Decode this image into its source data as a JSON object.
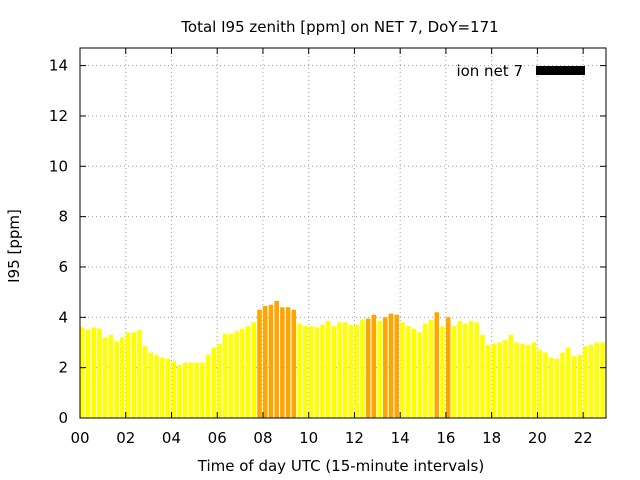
{
  "chart_data": {
    "type": "bar",
    "title": "Total I95 zenith [ppm] on NET 7, DoY=171",
    "xlabel": "Time of day UTC (15-minute intervals)",
    "ylabel": "I95 [ppm]",
    "xlim": [
      0,
      23
    ],
    "ylim": [
      0,
      14.7
    ],
    "x_ticks": [
      0,
      2,
      4,
      6,
      8,
      10,
      12,
      14,
      16,
      18,
      20,
      22
    ],
    "x_tick_labels": [
      "00",
      "02",
      "04",
      "06",
      "08",
      "10",
      "12",
      "14",
      "16",
      "18",
      "20",
      "22"
    ],
    "y_ticks": [
      0,
      2,
      4,
      6,
      8,
      10,
      12,
      14
    ],
    "y_tick_labels": [
      "0",
      "2",
      "4",
      "6",
      "8",
      "10",
      "12",
      "14"
    ],
    "grid": true,
    "legend_position": "top-right",
    "bar_width_hours": 0.2,
    "colors": {
      "normal": "#ffff00",
      "elevated": "#ffa500",
      "legend": "#000000",
      "grid": "#a0a0a0"
    },
    "series": [
      {
        "name": "ion net 7",
        "values": [
          {
            "x": 0.0,
            "y": 3.6,
            "level": "normal"
          },
          {
            "x": 0.25,
            "y": 3.5,
            "level": "normal"
          },
          {
            "x": 0.5,
            "y": 3.6,
            "level": "normal"
          },
          {
            "x": 0.75,
            "y": 3.55,
            "level": "normal"
          },
          {
            "x": 1.0,
            "y": 3.2,
            "level": "normal"
          },
          {
            "x": 1.25,
            "y": 3.3,
            "level": "normal"
          },
          {
            "x": 1.5,
            "y": 3.05,
            "level": "normal"
          },
          {
            "x": 1.75,
            "y": 3.2,
            "level": "normal"
          },
          {
            "x": 2.0,
            "y": 3.4,
            "level": "normal"
          },
          {
            "x": 2.25,
            "y": 3.4,
            "level": "normal"
          },
          {
            "x": 2.5,
            "y": 3.5,
            "level": "normal"
          },
          {
            "x": 2.75,
            "y": 2.85,
            "level": "normal"
          },
          {
            "x": 3.0,
            "y": 2.6,
            "level": "normal"
          },
          {
            "x": 3.25,
            "y": 2.5,
            "level": "normal"
          },
          {
            "x": 3.5,
            "y": 2.4,
            "level": "normal"
          },
          {
            "x": 3.75,
            "y": 2.35,
            "level": "normal"
          },
          {
            "x": 4.0,
            "y": 2.25,
            "level": "normal"
          },
          {
            "x": 4.25,
            "y": 2.1,
            "level": "normal"
          },
          {
            "x": 4.5,
            "y": 2.2,
            "level": "normal"
          },
          {
            "x": 4.75,
            "y": 2.2,
            "level": "normal"
          },
          {
            "x": 5.0,
            "y": 2.2,
            "level": "normal"
          },
          {
            "x": 5.25,
            "y": 2.2,
            "level": "normal"
          },
          {
            "x": 5.5,
            "y": 2.5,
            "level": "normal"
          },
          {
            "x": 5.75,
            "y": 2.8,
            "level": "normal"
          },
          {
            "x": 6.0,
            "y": 2.95,
            "level": "normal"
          },
          {
            "x": 6.25,
            "y": 3.35,
            "level": "normal"
          },
          {
            "x": 6.5,
            "y": 3.35,
            "level": "normal"
          },
          {
            "x": 6.75,
            "y": 3.45,
            "level": "normal"
          },
          {
            "x": 7.0,
            "y": 3.55,
            "level": "normal"
          },
          {
            "x": 7.25,
            "y": 3.65,
            "level": "normal"
          },
          {
            "x": 7.5,
            "y": 3.8,
            "level": "normal"
          },
          {
            "x": 7.75,
            "y": 4.3,
            "level": "elevated"
          },
          {
            "x": 8.0,
            "y": 4.45,
            "level": "elevated"
          },
          {
            "x": 8.25,
            "y": 4.5,
            "level": "elevated"
          },
          {
            "x": 8.5,
            "y": 4.65,
            "level": "elevated"
          },
          {
            "x": 8.75,
            "y": 4.4,
            "level": "elevated"
          },
          {
            "x": 9.0,
            "y": 4.4,
            "level": "elevated"
          },
          {
            "x": 9.25,
            "y": 4.3,
            "level": "elevated"
          },
          {
            "x": 9.5,
            "y": 3.75,
            "level": "normal"
          },
          {
            "x": 9.75,
            "y": 3.65,
            "level": "normal"
          },
          {
            "x": 10.0,
            "y": 3.65,
            "level": "normal"
          },
          {
            "x": 10.25,
            "y": 3.6,
            "level": "normal"
          },
          {
            "x": 10.5,
            "y": 3.7,
            "level": "normal"
          },
          {
            "x": 10.75,
            "y": 3.85,
            "level": "normal"
          },
          {
            "x": 11.0,
            "y": 3.65,
            "level": "normal"
          },
          {
            "x": 11.25,
            "y": 3.8,
            "level": "normal"
          },
          {
            "x": 11.5,
            "y": 3.8,
            "level": "normal"
          },
          {
            "x": 11.75,
            "y": 3.7,
            "level": "normal"
          },
          {
            "x": 12.0,
            "y": 3.7,
            "level": "normal"
          },
          {
            "x": 12.25,
            "y": 3.9,
            "level": "normal"
          },
          {
            "x": 12.5,
            "y": 3.95,
            "level": "elevated"
          },
          {
            "x": 12.75,
            "y": 4.1,
            "level": "elevated"
          },
          {
            "x": 13.0,
            "y": 3.85,
            "level": "normal"
          },
          {
            "x": 13.25,
            "y": 4.0,
            "level": "elevated"
          },
          {
            "x": 13.5,
            "y": 4.15,
            "level": "elevated"
          },
          {
            "x": 13.75,
            "y": 4.1,
            "level": "elevated"
          },
          {
            "x": 14.0,
            "y": 3.8,
            "level": "normal"
          },
          {
            "x": 14.25,
            "y": 3.65,
            "level": "normal"
          },
          {
            "x": 14.5,
            "y": 3.55,
            "level": "normal"
          },
          {
            "x": 14.75,
            "y": 3.4,
            "level": "normal"
          },
          {
            "x": 15.0,
            "y": 3.75,
            "level": "normal"
          },
          {
            "x": 15.25,
            "y": 3.9,
            "level": "normal"
          },
          {
            "x": 15.5,
            "y": 4.2,
            "level": "elevated"
          },
          {
            "x": 15.75,
            "y": 3.65,
            "level": "normal"
          },
          {
            "x": 16.0,
            "y": 4.0,
            "level": "elevated"
          },
          {
            "x": 16.25,
            "y": 3.65,
            "level": "normal"
          },
          {
            "x": 16.5,
            "y": 3.85,
            "level": "normal"
          },
          {
            "x": 16.75,
            "y": 3.75,
            "level": "normal"
          },
          {
            "x": 17.0,
            "y": 3.85,
            "level": "normal"
          },
          {
            "x": 17.25,
            "y": 3.8,
            "level": "normal"
          },
          {
            "x": 17.5,
            "y": 3.3,
            "level": "normal"
          },
          {
            "x": 17.75,
            "y": 2.9,
            "level": "normal"
          },
          {
            "x": 18.0,
            "y": 2.95,
            "level": "normal"
          },
          {
            "x": 18.25,
            "y": 3.0,
            "level": "normal"
          },
          {
            "x": 18.5,
            "y": 3.1,
            "level": "normal"
          },
          {
            "x": 18.75,
            "y": 3.3,
            "level": "normal"
          },
          {
            "x": 19.0,
            "y": 3.0,
            "level": "normal"
          },
          {
            "x": 19.25,
            "y": 2.95,
            "level": "normal"
          },
          {
            "x": 19.5,
            "y": 2.9,
            "level": "normal"
          },
          {
            "x": 19.75,
            "y": 3.0,
            "level": "normal"
          },
          {
            "x": 20.0,
            "y": 2.7,
            "level": "normal"
          },
          {
            "x": 20.25,
            "y": 2.6,
            "level": "normal"
          },
          {
            "x": 20.5,
            "y": 2.4,
            "level": "normal"
          },
          {
            "x": 20.75,
            "y": 2.35,
            "level": "normal"
          },
          {
            "x": 21.0,
            "y": 2.6,
            "level": "normal"
          },
          {
            "x": 21.25,
            "y": 2.8,
            "level": "normal"
          },
          {
            "x": 21.5,
            "y": 2.45,
            "level": "normal"
          },
          {
            "x": 21.75,
            "y": 2.5,
            "level": "normal"
          },
          {
            "x": 22.0,
            "y": 2.85,
            "level": "normal"
          },
          {
            "x": 22.25,
            "y": 2.9,
            "level": "normal"
          },
          {
            "x": 22.5,
            "y": 3.0,
            "level": "normal"
          },
          {
            "x": 22.75,
            "y": 3.0,
            "level": "normal"
          }
        ]
      }
    ]
  }
}
